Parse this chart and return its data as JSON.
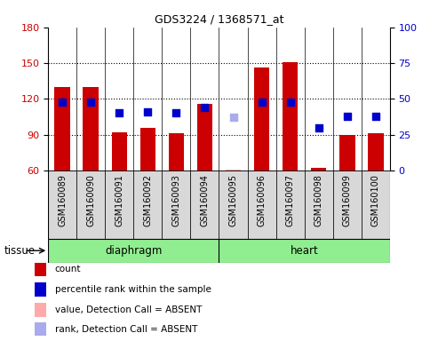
{
  "title": "GDS3224 / 1368571_at",
  "samples": [
    "GSM160089",
    "GSM160090",
    "GSM160091",
    "GSM160092",
    "GSM160093",
    "GSM160094",
    "GSM160095",
    "GSM160096",
    "GSM160097",
    "GSM160098",
    "GSM160099",
    "GSM160100"
  ],
  "bar_values": [
    130,
    130,
    92,
    96,
    91,
    116,
    61,
    146,
    151,
    62,
    90,
    91
  ],
  "bar_absent": [
    false,
    false,
    false,
    false,
    false,
    false,
    true,
    false,
    false,
    false,
    false,
    false
  ],
  "rank_values": [
    48,
    48,
    40,
    41,
    40,
    44,
    37,
    48,
    48,
    30,
    38,
    38
  ],
  "rank_absent": [
    false,
    false,
    false,
    false,
    false,
    false,
    true,
    false,
    false,
    false,
    false,
    false
  ],
  "ylim_left": [
    60,
    180
  ],
  "ylim_right": [
    0,
    100
  ],
  "yticks_left": [
    60,
    90,
    120,
    150,
    180
  ],
  "yticks_right": [
    0,
    25,
    50,
    75,
    100
  ],
  "bar_color": "#cc0000",
  "bar_absent_color": "#ffaaaa",
  "rank_color": "#0000cc",
  "rank_absent_color": "#aaaaee",
  "tissue_groups": [
    {
      "name": "diaphragm",
      "start": 0,
      "end": 5,
      "color": "#90EE90"
    },
    {
      "name": "heart",
      "start": 6,
      "end": 11,
      "color": "#90EE90"
    }
  ],
  "tissue_label": "tissue",
  "legend_items": [
    {
      "color": "#cc0000",
      "label": "count"
    },
    {
      "color": "#0000cc",
      "label": "percentile rank within the sample"
    },
    {
      "color": "#ffaaaa",
      "label": "value, Detection Call = ABSENT"
    },
    {
      "color": "#aaaaee",
      "label": "rank, Detection Call = ABSENT"
    }
  ],
  "cell_bg": "#d8d8d8",
  "grid_yticks": [
    90,
    120,
    150
  ]
}
